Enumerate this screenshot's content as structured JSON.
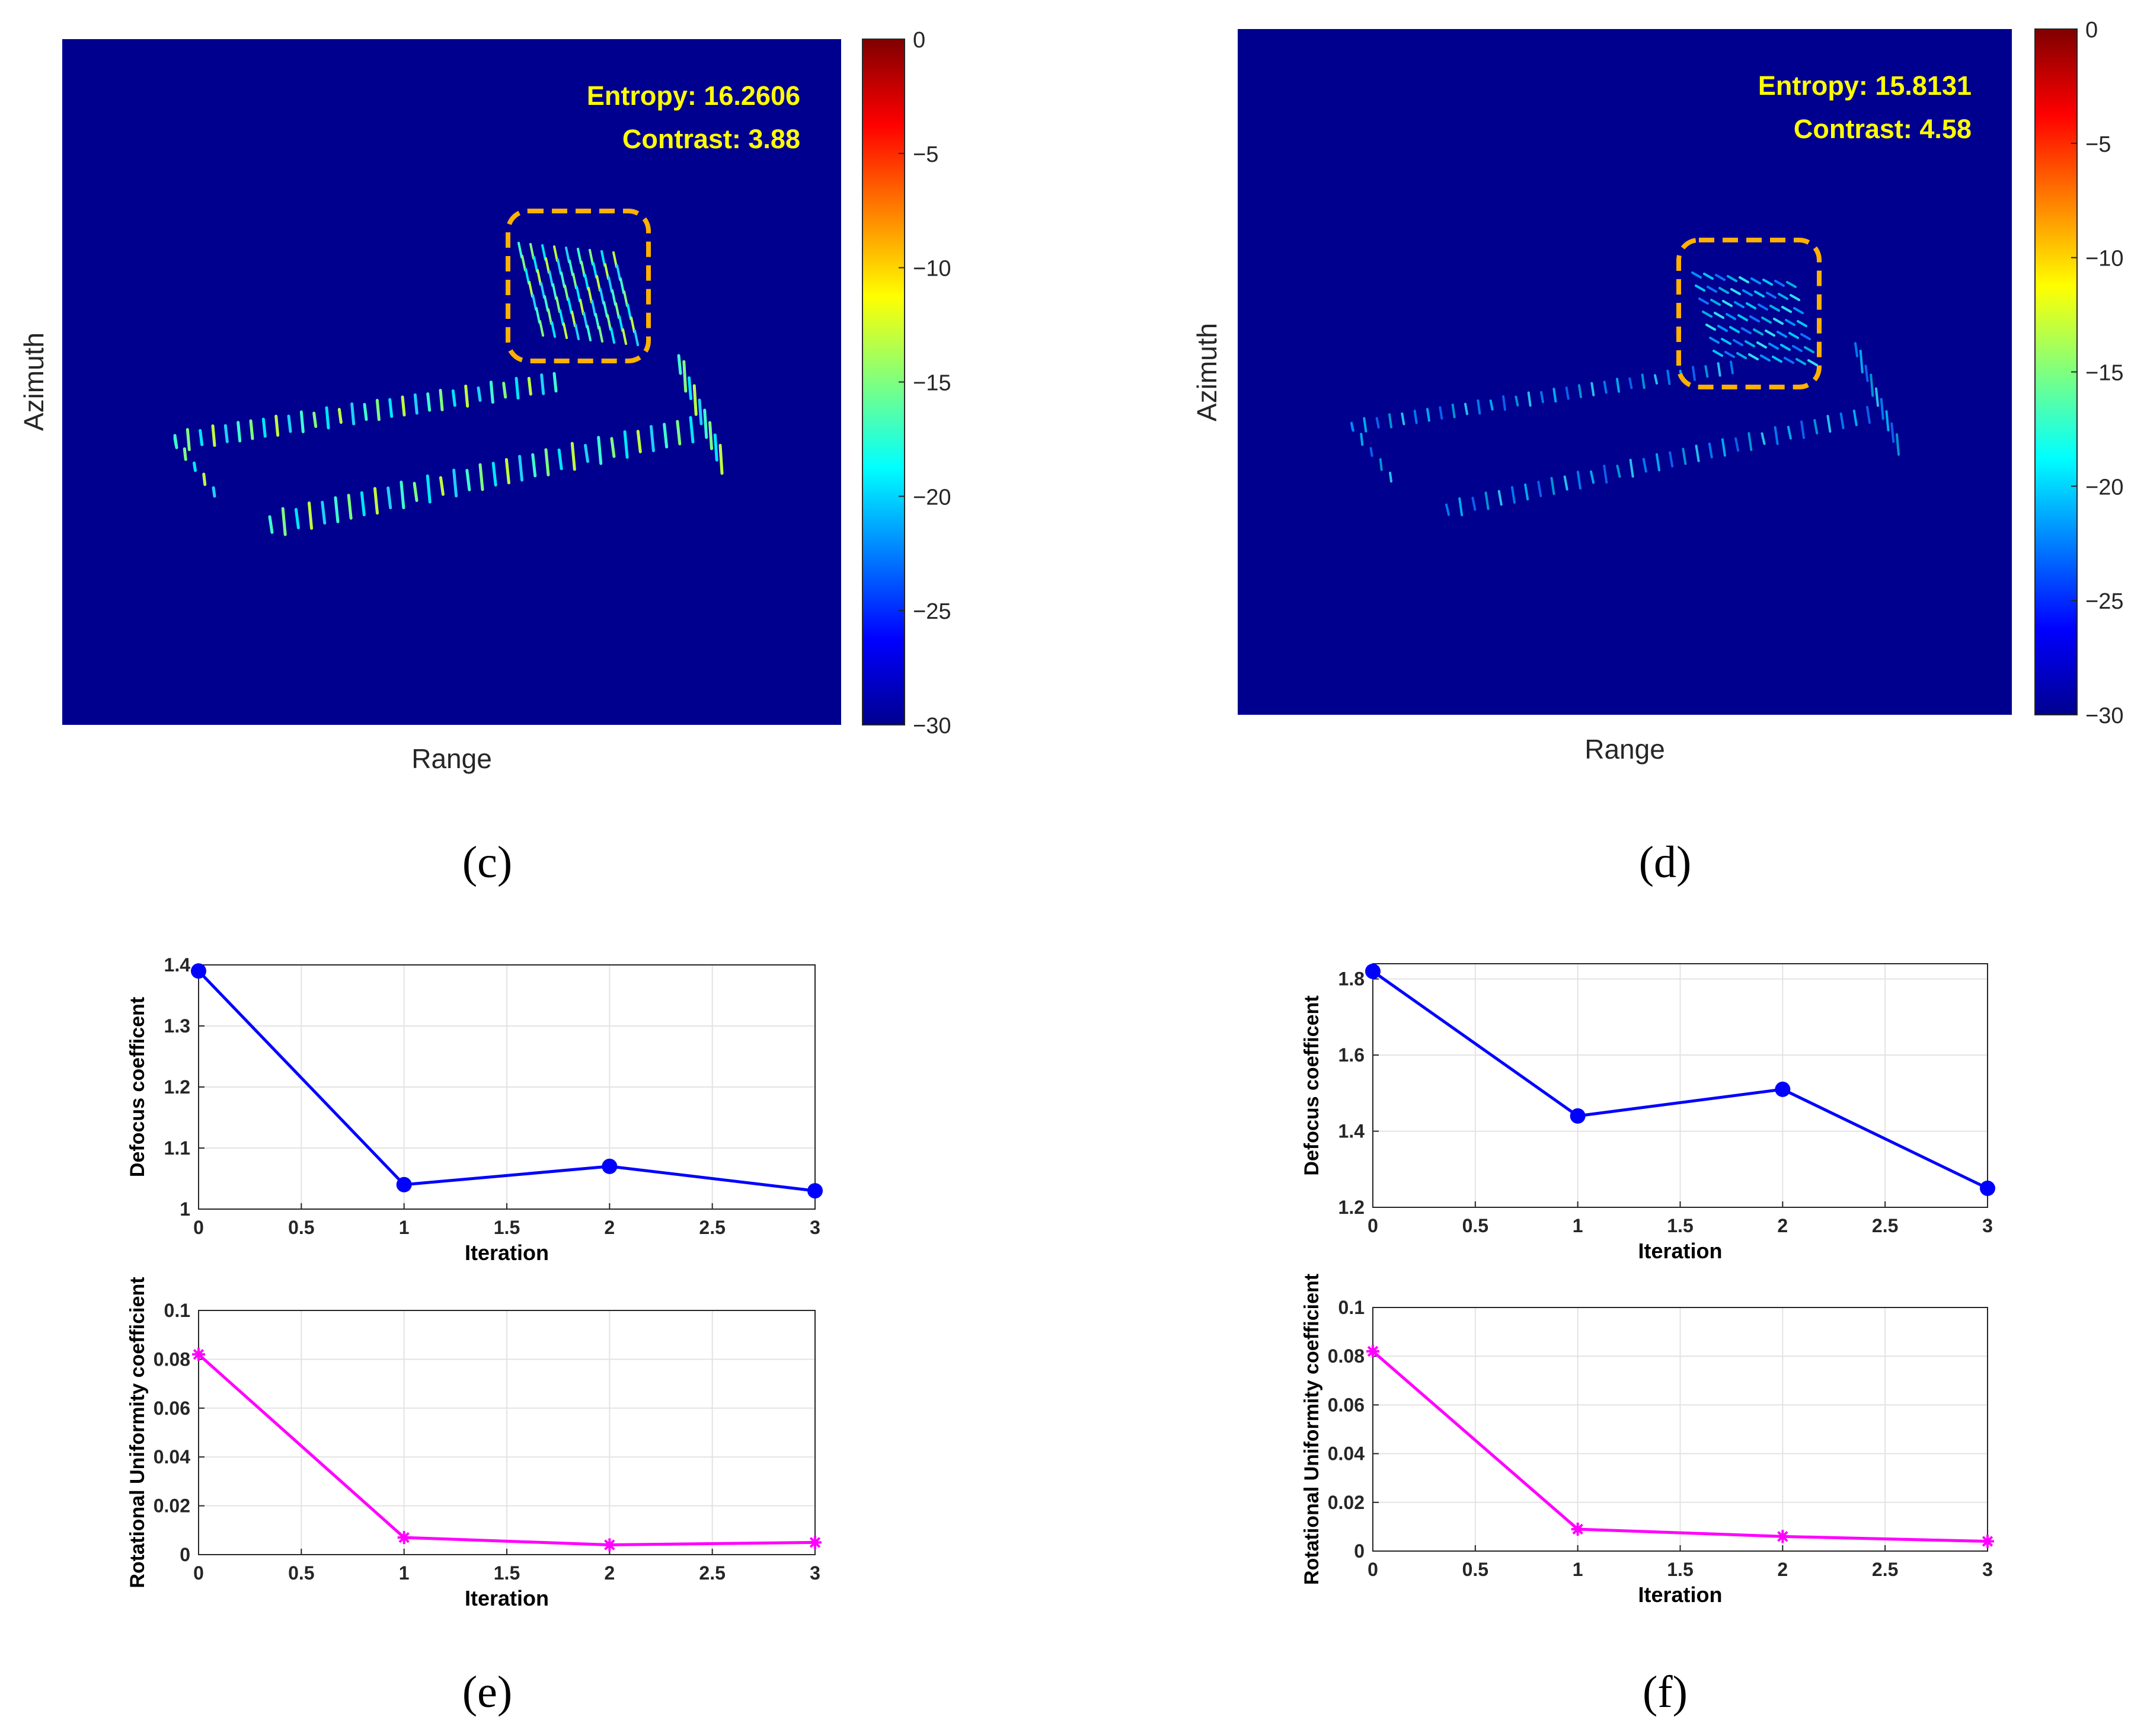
{
  "colors": {
    "jet_low": "#00008f",
    "overlay_text": "#ffff00",
    "dash_box": "#ffb000",
    "defocus_line": "#0000ff",
    "rotational_line": "#ff00ff",
    "grid": "#e3e3e3",
    "axis": "#262626"
  },
  "panels": {
    "c": {
      "label": "(c)",
      "entropy_text": "Entropy: 16.2606",
      "contrast_text": "Contrast: 3.88",
      "xlabel": "Range",
      "ylabel": "Azimuth"
    },
    "d": {
      "label": "(d)",
      "entropy_text": "Entropy: 15.8131",
      "contrast_text": "Contrast: 4.58",
      "xlabel": "Range",
      "ylabel": "Azimuth"
    },
    "e": {
      "label": "(e)"
    },
    "f": {
      "label": "(f)"
    }
  },
  "chart_data": [
    {
      "panel": "c",
      "type": "heatmap",
      "title": "",
      "xlabel": "Range",
      "ylabel": "Azimuth",
      "colorbar": {
        "ticks": [
          "0",
          "−5",
          "−10",
          "−15",
          "−20",
          "−25",
          "−30"
        ],
        "range": [
          -30,
          0
        ],
        "colormap": "jet"
      },
      "annotations": [
        "Entropy: 16.2606",
        "Contrast: 3.88"
      ]
    },
    {
      "panel": "d",
      "type": "heatmap",
      "title": "",
      "xlabel": "Range",
      "ylabel": "Azimuth",
      "colorbar": {
        "ticks": [
          "0",
          "−5",
          "−10",
          "−15",
          "−20",
          "−25",
          "−30"
        ],
        "range": [
          -30,
          0
        ],
        "colormap": "jet"
      },
      "annotations": [
        "Entropy: 15.8131",
        "Contrast: 4.58"
      ]
    },
    {
      "panel": "e",
      "type": "line",
      "title": "",
      "xlabel": "Iteration",
      "ylabel": "Defocus coefficent",
      "x": [
        0,
        1,
        2,
        3
      ],
      "values": [
        1.39,
        1.04,
        1.07,
        1.03
      ],
      "xlim": [
        0,
        3
      ],
      "ylim": [
        1,
        1.4
      ],
      "xticks": [
        "0",
        "0.5",
        "1",
        "1.5",
        "2",
        "2.5",
        "3"
      ],
      "yticks": [
        "1",
        "1.1",
        "1.2",
        "1.3",
        "1.4"
      ],
      "marker": "circle",
      "grid": true
    },
    {
      "panel": "e",
      "type": "line",
      "title": "",
      "xlabel": "Iteration",
      "ylabel": "Rotational Uniformity coefficient",
      "x": [
        0,
        1,
        2,
        3
      ],
      "values": [
        0.082,
        0.007,
        0.004,
        0.005
      ],
      "xlim": [
        0,
        3
      ],
      "ylim": [
        0,
        0.1
      ],
      "xticks": [
        "0",
        "0.5",
        "1",
        "1.5",
        "2",
        "2.5",
        "3"
      ],
      "yticks": [
        "0",
        "0.02",
        "0.04",
        "0.06",
        "0.08",
        "0.1"
      ],
      "marker": "asterisk",
      "grid": true
    },
    {
      "panel": "f",
      "type": "line",
      "title": "",
      "xlabel": "Iteration",
      "ylabel": "Defocus coefficent",
      "x": [
        0,
        1,
        2,
        3
      ],
      "values": [
        1.82,
        1.44,
        1.51,
        1.25
      ],
      "xlim": [
        0,
        3
      ],
      "ylim": [
        1.2,
        1.84
      ],
      "xticks": [
        "0",
        "0.5",
        "1",
        "1.5",
        "2",
        "2.5",
        "3"
      ],
      "yticks": [
        "1.2",
        "1.4",
        "1.6",
        "1.8"
      ],
      "marker": "circle",
      "grid": true
    },
    {
      "panel": "f",
      "type": "line",
      "title": "",
      "xlabel": "Iteration",
      "ylabel": "Rotational Uniformity coefficient",
      "x": [
        0,
        1,
        2,
        3
      ],
      "values": [
        0.082,
        0.009,
        0.006,
        0.004
      ],
      "xlim": [
        0,
        3
      ],
      "ylim": [
        0,
        0.1
      ],
      "xticks": [
        "0",
        "0.5",
        "1",
        "1.5",
        "2",
        "2.5",
        "3"
      ],
      "yticks": [
        "0",
        "0.02",
        "0.04",
        "0.06",
        "0.08",
        "0.1"
      ],
      "marker": "asterisk",
      "grid": true
    }
  ]
}
